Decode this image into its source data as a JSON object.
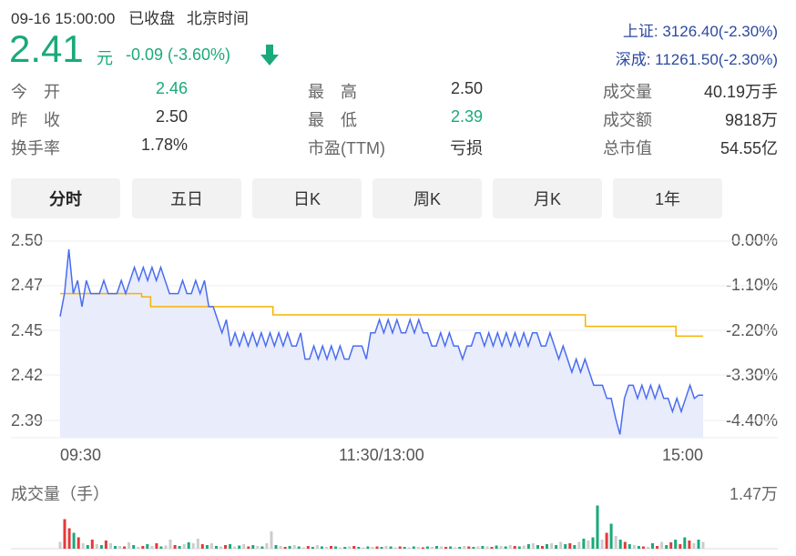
{
  "header": {
    "datetime": "09-16 15:00:00",
    "status": "已收盘",
    "timezone": "北京时间",
    "price": "2.41",
    "unit": "元",
    "change": "-0.09 (-3.60%)",
    "arrow_icon": "arrow-down-icon",
    "index1": "上证: 3126.40(-2.30%)",
    "index2": "深成: 11261.50(-2.30%)"
  },
  "quote": {
    "rows": [
      [
        {
          "label": "今　开",
          "value": "2.46",
          "color": "green"
        },
        {
          "label": "最　高",
          "value": "2.50",
          "color": "normal"
        },
        {
          "label": "成交量",
          "value": "40.19万手",
          "color": "normal"
        }
      ],
      [
        {
          "label": "昨　收",
          "value": "2.50",
          "color": "normal"
        },
        {
          "label": "最　低",
          "value": "2.39",
          "color": "green"
        },
        {
          "label": "成交额",
          "value": "9818万",
          "color": "normal"
        }
      ],
      [
        {
          "label": "换手率",
          "value": "1.78%",
          "color": "normal"
        },
        {
          "label": "市盈(TTM)",
          "value": "亏损",
          "color": "normal"
        },
        {
          "label": "总市值",
          "value": "54.55亿",
          "color": "normal"
        }
      ]
    ]
  },
  "tabs": [
    "分时",
    "五日",
    "日K",
    "周K",
    "月K",
    "1年"
  ],
  "active_tab": 0,
  "colors": {
    "price_line": "#4a6cf0",
    "avg_line": "#f5b400",
    "up": "#e23a3a",
    "down": "#1aa97b",
    "neutral": "#cccccc",
    "fill": "#e6ebfb"
  },
  "chart_data": {
    "type": "line",
    "left_axis": [
      "2.50",
      "2.47",
      "2.45",
      "2.42",
      "2.39"
    ],
    "right_axis": [
      "0.00%",
      "-1.10%",
      "-2.20%",
      "-3.30%",
      "-4.40%"
    ],
    "x_ticks": [
      "09:30",
      "11:30/13:00",
      "15:00"
    ],
    "ylim": [
      2.38,
      2.5
    ],
    "series": [
      {
        "values": [
          2.454,
          2.468,
          2.495,
          2.468,
          2.476,
          2.46,
          2.476,
          2.468,
          2.468,
          2.468,
          2.476,
          2.468,
          2.468,
          2.468,
          2.476,
          2.468,
          2.476,
          2.484,
          2.476,
          2.484,
          2.476,
          2.484,
          2.476,
          2.484,
          2.476,
          2.468,
          2.468,
          2.468,
          2.476,
          2.468,
          2.468,
          2.476,
          2.468,
          2.476,
          2.46,
          2.46,
          2.452,
          2.444,
          2.452,
          2.436,
          2.444,
          2.436,
          2.444,
          2.436,
          2.444,
          2.436,
          2.444,
          2.436,
          2.444,
          2.436,
          2.444,
          2.436,
          2.444,
          2.436,
          2.436,
          2.444,
          2.428,
          2.428,
          2.436,
          2.428,
          2.436,
          2.428,
          2.436,
          2.428,
          2.436,
          2.428,
          2.428,
          2.436,
          2.436,
          2.436,
          2.428,
          2.444,
          2.444,
          2.452,
          2.444,
          2.452,
          2.444,
          2.452,
          2.444,
          2.444,
          2.452,
          2.444,
          2.452,
          2.444,
          2.444,
          2.436,
          2.436,
          2.444,
          2.436,
          2.444,
          2.436,
          2.436,
          2.428,
          2.436,
          2.436,
          2.444,
          2.444,
          2.436,
          2.444,
          2.436,
          2.444,
          2.436,
          2.444,
          2.436,
          2.444,
          2.436,
          2.444,
          2.436,
          2.444,
          2.444,
          2.436,
          2.436,
          2.444,
          2.436,
          2.428,
          2.436,
          2.428,
          2.42,
          2.428,
          2.42,
          2.428,
          2.42,
          2.412,
          2.412,
          2.412,
          2.404,
          2.404,
          2.392,
          2.382,
          2.404,
          2.412,
          2.412,
          2.404,
          2.412,
          2.404,
          2.412,
          2.404,
          2.412,
          2.404,
          2.404,
          2.396,
          2.404,
          2.396,
          2.404,
          2.412,
          2.404,
          2.406,
          2.406
        ]
      },
      {
        "values": [
          2.468,
          2.468,
          2.468,
          2.468,
          2.468,
          2.468,
          2.468,
          2.468,
          2.468,
          2.468,
          2.468,
          2.468,
          2.468,
          2.468,
          2.468,
          2.468,
          2.468,
          2.468,
          2.466,
          2.466,
          2.46,
          2.46,
          2.46,
          2.46,
          2.46,
          2.46,
          2.46,
          2.46,
          2.46,
          2.46,
          2.46,
          2.46,
          2.46,
          2.46,
          2.46,
          2.46,
          2.46,
          2.46,
          2.46,
          2.46,
          2.46,
          2.46,
          2.46,
          2.46,
          2.46,
          2.46,
          2.46,
          2.455,
          2.455,
          2.455,
          2.455,
          2.455,
          2.455,
          2.455,
          2.455,
          2.455,
          2.455,
          2.455,
          2.455,
          2.455,
          2.455,
          2.455,
          2.455,
          2.455,
          2.455,
          2.455,
          2.455,
          2.455,
          2.455,
          2.455,
          2.455,
          2.455,
          2.455,
          2.455,
          2.455,
          2.455,
          2.455,
          2.455,
          2.455,
          2.455,
          2.455,
          2.455,
          2.455,
          2.455,
          2.455,
          2.455,
          2.455,
          2.455,
          2.455,
          2.455,
          2.455,
          2.455,
          2.455,
          2.455,
          2.455,
          2.455,
          2.455,
          2.455,
          2.455,
          2.455,
          2.455,
          2.455,
          2.455,
          2.455,
          2.455,
          2.455,
          2.455,
          2.455,
          2.455,
          2.455,
          2.455,
          2.455,
          2.455,
          2.455,
          2.455,
          2.455,
          2.448,
          2.448,
          2.448,
          2.448,
          2.448,
          2.448,
          2.448,
          2.448,
          2.448,
          2.448,
          2.448,
          2.448,
          2.448,
          2.448,
          2.448,
          2.448,
          2.448,
          2.448,
          2.448,
          2.448,
          2.442,
          2.442,
          2.442,
          2.442,
          2.442,
          2.442,
          2.442
        ]
      }
    ]
  },
  "volume": {
    "label": "成交量（手）",
    "max_label": "1.47万",
    "bars": [
      {
        "v": 0.15,
        "c": "n"
      },
      {
        "v": 0.65,
        "c": "up"
      },
      {
        "v": 0.45,
        "c": "up"
      },
      {
        "v": 0.35,
        "c": "dn"
      },
      {
        "v": 0.25,
        "c": "up"
      },
      {
        "v": 0.12,
        "c": "n"
      },
      {
        "v": 0.08,
        "c": "dn"
      },
      {
        "v": 0.2,
        "c": "up"
      },
      {
        "v": 0.1,
        "c": "n"
      },
      {
        "v": 0.08,
        "c": "dn"
      },
      {
        "v": 0.18,
        "c": "up"
      },
      {
        "v": 0.12,
        "c": "n"
      },
      {
        "v": 0.06,
        "c": "dn"
      },
      {
        "v": 0.06,
        "c": "n"
      },
      {
        "v": 0.05,
        "c": "up"
      },
      {
        "v": 0.14,
        "c": "n"
      },
      {
        "v": 0.08,
        "c": "dn"
      },
      {
        "v": 0.04,
        "c": "n"
      },
      {
        "v": 0.06,
        "c": "up"
      },
      {
        "v": 0.1,
        "c": "dn"
      },
      {
        "v": 0.06,
        "c": "n"
      },
      {
        "v": 0.12,
        "c": "up"
      },
      {
        "v": 0.05,
        "c": "dn"
      },
      {
        "v": 0.07,
        "c": "n"
      },
      {
        "v": 0.2,
        "c": "n"
      },
      {
        "v": 0.08,
        "c": "up"
      },
      {
        "v": 0.06,
        "c": "dn"
      },
      {
        "v": 0.1,
        "c": "n"
      },
      {
        "v": 0.14,
        "c": "dn"
      },
      {
        "v": 0.12,
        "c": "n"
      },
      {
        "v": 0.22,
        "c": "n"
      },
      {
        "v": 0.1,
        "c": "up"
      },
      {
        "v": 0.08,
        "c": "dn"
      },
      {
        "v": 0.12,
        "c": "n"
      },
      {
        "v": 0.06,
        "c": "dn"
      },
      {
        "v": 0.05,
        "c": "n"
      },
      {
        "v": 0.08,
        "c": "up"
      },
      {
        "v": 0.1,
        "c": "dn"
      },
      {
        "v": 0.05,
        "c": "n"
      },
      {
        "v": 0.07,
        "c": "dn"
      },
      {
        "v": 0.1,
        "c": "n"
      },
      {
        "v": 0.05,
        "c": "up"
      },
      {
        "v": 0.08,
        "c": "dn"
      },
      {
        "v": 0.06,
        "c": "n"
      },
      {
        "v": 0.05,
        "c": "dn"
      },
      {
        "v": 0.12,
        "c": "n"
      },
      {
        "v": 0.38,
        "c": "n"
      },
      {
        "v": 0.08,
        "c": "dn"
      },
      {
        "v": 0.06,
        "c": "n"
      },
      {
        "v": 0.04,
        "c": "up"
      },
      {
        "v": 0.06,
        "c": "dn"
      },
      {
        "v": 0.08,
        "c": "n"
      },
      {
        "v": 0.05,
        "c": "dn"
      },
      {
        "v": 0.03,
        "c": "n"
      },
      {
        "v": 0.06,
        "c": "up"
      },
      {
        "v": 0.04,
        "c": "dn"
      },
      {
        "v": 0.08,
        "c": "n"
      },
      {
        "v": 0.05,
        "c": "dn"
      },
      {
        "v": 0.04,
        "c": "n"
      },
      {
        "v": 0.06,
        "c": "up"
      },
      {
        "v": 0.05,
        "c": "dn"
      },
      {
        "v": 0.03,
        "c": "n"
      },
      {
        "v": 0.04,
        "c": "dn"
      },
      {
        "v": 0.05,
        "c": "n"
      },
      {
        "v": 0.06,
        "c": "up"
      },
      {
        "v": 0.04,
        "c": "dn"
      },
      {
        "v": 0.03,
        "c": "n"
      },
      {
        "v": 0.05,
        "c": "dn"
      },
      {
        "v": 0.04,
        "c": "n"
      },
      {
        "v": 0.05,
        "c": "up"
      },
      {
        "v": 0.04,
        "c": "dn"
      },
      {
        "v": 0.06,
        "c": "n"
      },
      {
        "v": 0.05,
        "c": "dn"
      },
      {
        "v": 0.03,
        "c": "n"
      },
      {
        "v": 0.05,
        "c": "up"
      },
      {
        "v": 0.04,
        "c": "dn"
      },
      {
        "v": 0.03,
        "c": "n"
      },
      {
        "v": 0.05,
        "c": "dn"
      },
      {
        "v": 0.04,
        "c": "n"
      },
      {
        "v": 0.03,
        "c": "up"
      },
      {
        "v": 0.05,
        "c": "dn"
      },
      {
        "v": 0.04,
        "c": "n"
      },
      {
        "v": 0.06,
        "c": "dn"
      },
      {
        "v": 0.05,
        "c": "n"
      },
      {
        "v": 0.04,
        "c": "up"
      },
      {
        "v": 0.05,
        "c": "dn"
      },
      {
        "v": 0.03,
        "c": "n"
      },
      {
        "v": 0.04,
        "c": "dn"
      },
      {
        "v": 0.06,
        "c": "n"
      },
      {
        "v": 0.05,
        "c": "up"
      },
      {
        "v": 0.04,
        "c": "dn"
      },
      {
        "v": 0.05,
        "c": "n"
      },
      {
        "v": 0.06,
        "c": "dn"
      },
      {
        "v": 0.05,
        "c": "n"
      },
      {
        "v": 0.04,
        "c": "up"
      },
      {
        "v": 0.07,
        "c": "dn"
      },
      {
        "v": 0.06,
        "c": "n"
      },
      {
        "v": 0.05,
        "c": "dn"
      },
      {
        "v": 0.08,
        "c": "n"
      },
      {
        "v": 0.06,
        "c": "up"
      },
      {
        "v": 0.05,
        "c": "dn"
      },
      {
        "v": 0.07,
        "c": "n"
      },
      {
        "v": 0.1,
        "c": "dn"
      },
      {
        "v": 0.12,
        "c": "n"
      },
      {
        "v": 0.08,
        "c": "dn"
      },
      {
        "v": 0.06,
        "c": "up"
      },
      {
        "v": 0.1,
        "c": "dn"
      },
      {
        "v": 0.12,
        "c": "n"
      },
      {
        "v": 0.08,
        "c": "dn"
      },
      {
        "v": 0.15,
        "c": "n"
      },
      {
        "v": 0.1,
        "c": "dn"
      },
      {
        "v": 0.12,
        "c": "up"
      },
      {
        "v": 0.08,
        "c": "dn"
      },
      {
        "v": 0.15,
        "c": "n"
      },
      {
        "v": 0.22,
        "c": "dn"
      },
      {
        "v": 0.18,
        "c": "n"
      },
      {
        "v": 0.25,
        "c": "dn"
      },
      {
        "v": 0.95,
        "c": "dn"
      },
      {
        "v": 0.2,
        "c": "n"
      },
      {
        "v": 0.35,
        "c": "up"
      },
      {
        "v": 0.55,
        "c": "dn"
      },
      {
        "v": 0.28,
        "c": "n"
      },
      {
        "v": 0.2,
        "c": "dn"
      },
      {
        "v": 0.15,
        "c": "up"
      },
      {
        "v": 0.1,
        "c": "dn"
      },
      {
        "v": 0.08,
        "c": "n"
      },
      {
        "v": 0.06,
        "c": "dn"
      },
      {
        "v": 0.05,
        "c": "up"
      },
      {
        "v": 0.04,
        "c": "n"
      },
      {
        "v": 0.12,
        "c": "dn"
      },
      {
        "v": 0.06,
        "c": "up"
      },
      {
        "v": 0.15,
        "c": "n"
      },
      {
        "v": 0.08,
        "c": "dn"
      },
      {
        "v": 0.14,
        "c": "up"
      },
      {
        "v": 0.2,
        "c": "dn"
      },
      {
        "v": 0.1,
        "c": "up"
      },
      {
        "v": 0.25,
        "c": "dn"
      },
      {
        "v": 0.18,
        "c": "up"
      },
      {
        "v": 0.12,
        "c": "n"
      },
      {
        "v": 0.2,
        "c": "dn"
      },
      {
        "v": 0.15,
        "c": "n"
      }
    ]
  }
}
